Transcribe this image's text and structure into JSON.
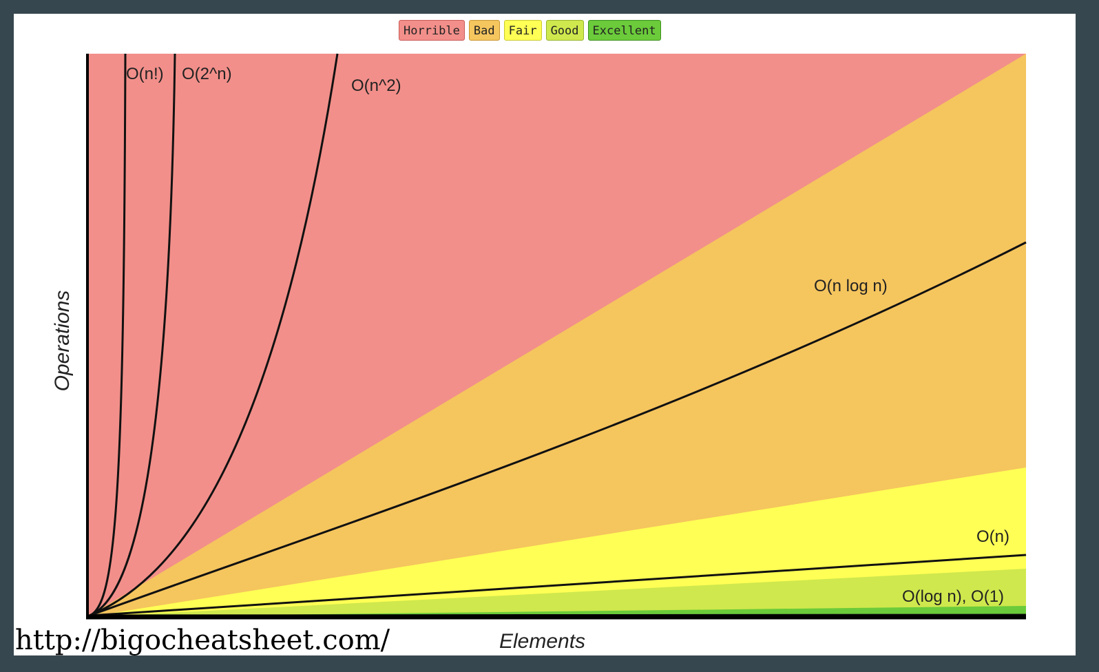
{
  "legend": [
    {
      "label": "Horrible",
      "color": "#f28f8a",
      "border": "#c85a55"
    },
    {
      "label": "Bad",
      "color": "#f5c55e",
      "border": "#c99630"
    },
    {
      "label": "Fair",
      "color": "#ffff55",
      "border": "#c9c930"
    },
    {
      "label": "Good",
      "color": "#cfe84d",
      "border": "#94b52a"
    },
    {
      "label": "Excellent",
      "color": "#6bcb3a",
      "border": "#3d8f1e"
    }
  ],
  "source": "http://bigocheatsheet.com/",
  "chart_data": {
    "type": "line",
    "xlabel": "Elements",
    "ylabel": "Operations",
    "grid": false,
    "legend_position": "top-center",
    "regions": [
      {
        "name": "Horrible",
        "color": "#f28f8a"
      },
      {
        "name": "Bad",
        "color": "#f5c55e"
      },
      {
        "name": "Fair",
        "color": "#ffff55"
      },
      {
        "name": "Good",
        "color": "#cfe84d"
      },
      {
        "name": "Excellent",
        "color": "#6bcb3a"
      }
    ],
    "curves": [
      {
        "name": "O(n!)",
        "label": "O(n!)"
      },
      {
        "name": "O(2^n)",
        "label": "O(2^n)"
      },
      {
        "name": "O(n^2)",
        "label": "O(n^2)"
      },
      {
        "name": "O(n log n)",
        "label": "O(n log n)"
      },
      {
        "name": "O(n)",
        "label": "O(n)"
      },
      {
        "name": "O(log n), O(1)",
        "label": "O(log n), O(1)"
      }
    ]
  }
}
